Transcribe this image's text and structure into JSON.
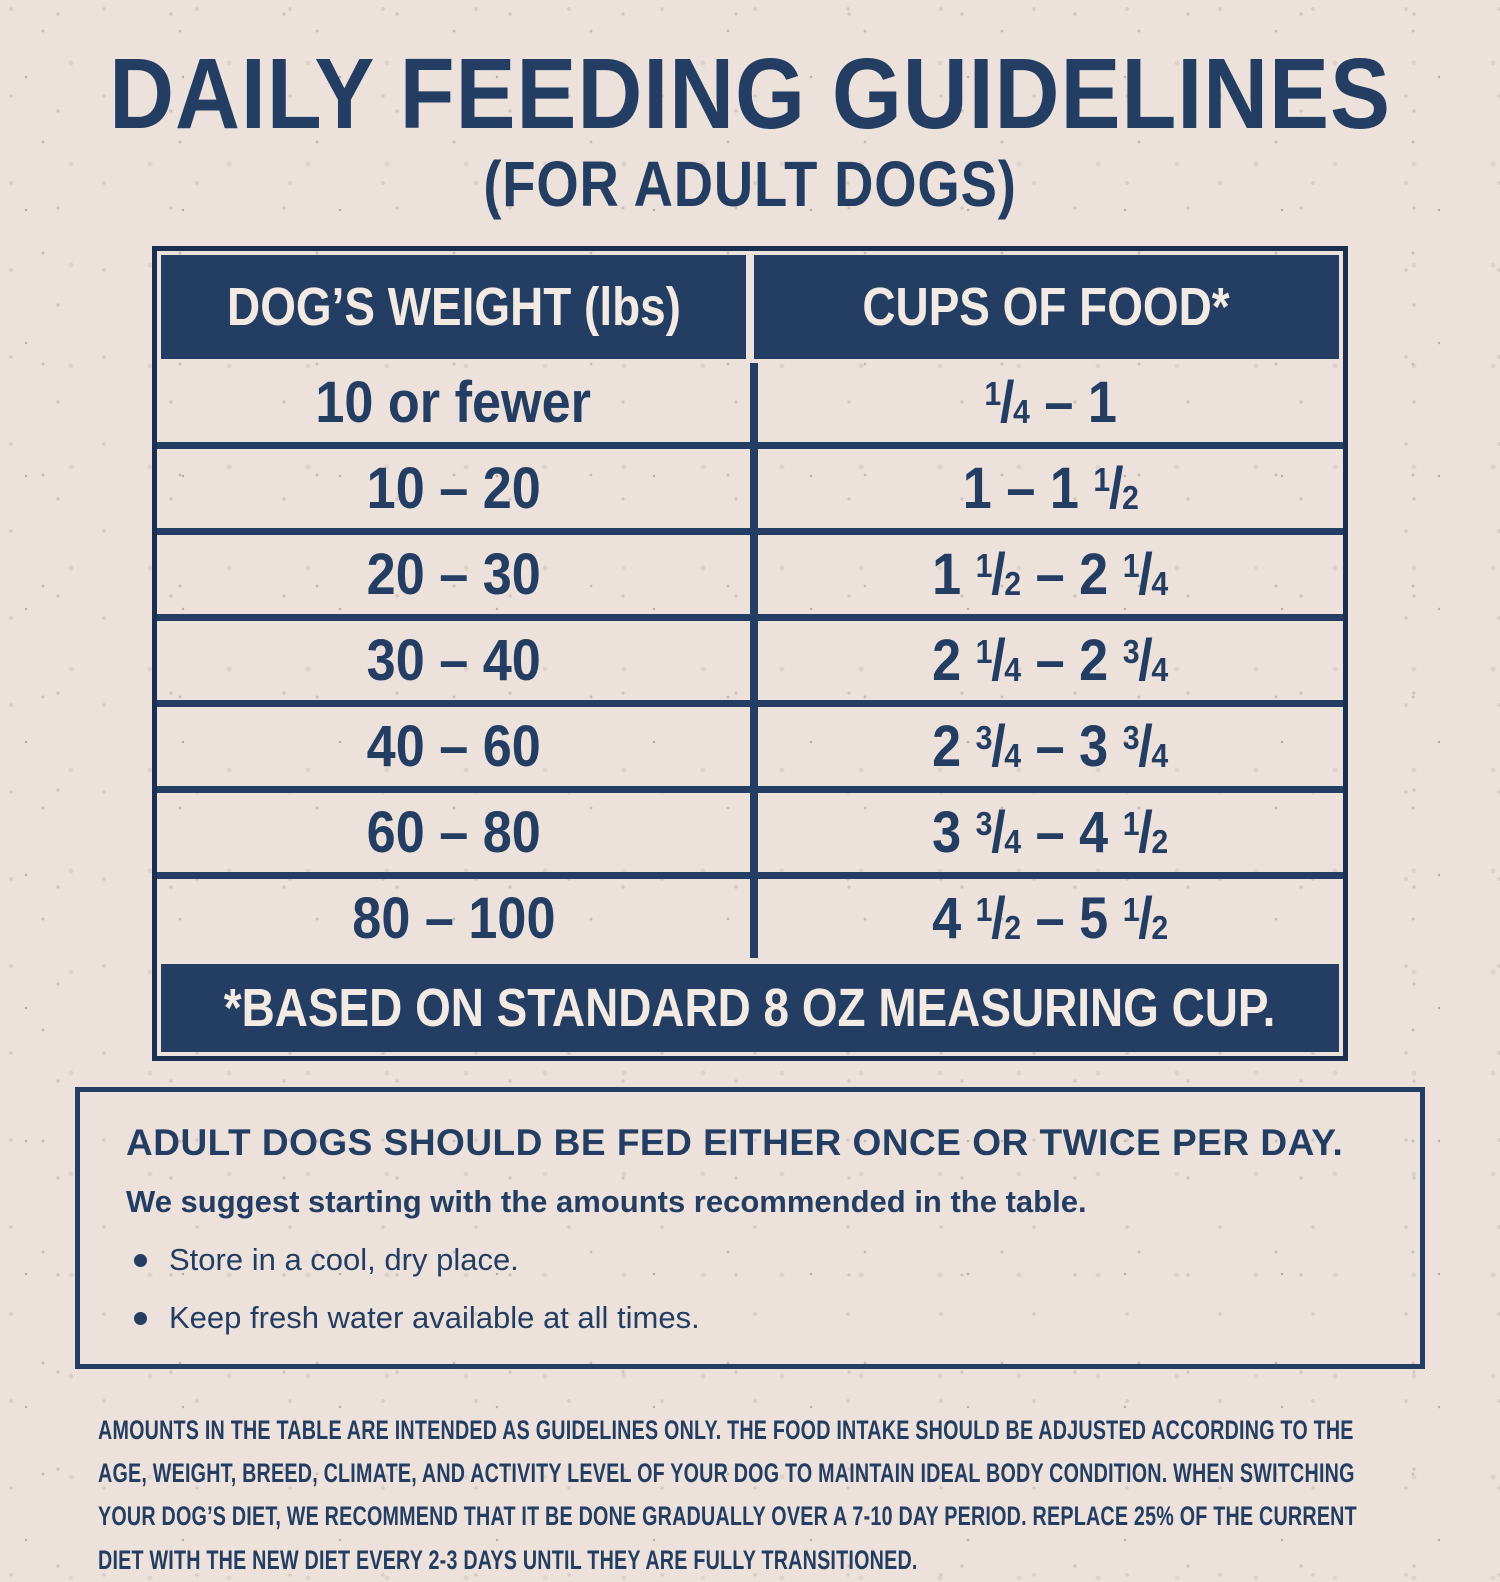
{
  "page": {
    "title": "DAILY FEEDING GUIDELINES",
    "subtitle": "(FOR ADULT DOGS)"
  },
  "table": {
    "headers": [
      "DOG’S WEIGHT (lbs)",
      "CUPS OF FOOD*"
    ],
    "rows": [
      {
        "weight": "10 or fewer",
        "cups": "1/4 – 1"
      },
      {
        "weight": "10 – 20",
        "cups": "1 – 1 1/2"
      },
      {
        "weight": "20 – 30",
        "cups": "1 1/2 – 2 1/4"
      },
      {
        "weight": "30 – 40",
        "cups": "2 1/4 – 2 3/4"
      },
      {
        "weight": "40 – 60",
        "cups": "2 3/4 – 3 3/4"
      },
      {
        "weight": "60 – 80",
        "cups": "3 3/4 – 4 1/2"
      },
      {
        "weight": "80 – 100",
        "cups": "4 1/2 – 5 1/2"
      }
    ],
    "footnote": "*BASED ON STANDARD 8 OZ MEASURING CUP."
  },
  "info_box": {
    "heading": "ADULT DOGS SHOULD BE FED EITHER ONCE OR TWICE PER DAY.",
    "subheading": "We suggest starting with the amounts recommended in the table.",
    "bullets": [
      "Store in a cool, dry place.",
      "Keep fresh water available at all times."
    ]
  },
  "disclaimer": "AMOUNTS IN THE TABLE ARE INTENDED AS GUIDELINES ONLY. THE FOOD INTAKE SHOULD BE ADJUSTED ACCORDING TO THE AGE, WEIGHT, BREED, CLIMATE, AND ACTIVITY LEVEL OF YOUR DOG TO MAINTAIN IDEAL BODY CONDITION. WHEN SWITCHING YOUR DOG’S DIET, WE RECOMMEND THAT IT BE DONE GRADUALLY OVER A 7-10 DAY PERIOD. REPLACE 25% OF THE CURRENT DIET WITH THE NEW DIET EVERY 2-3 DAYS UNTIL THEY ARE FULLY TRANSITIONED.",
  "colors": {
    "navy": "#233d63",
    "outer_border": "#1b3050",
    "background": "#ece1db",
    "header_text": "#f3eae4"
  }
}
